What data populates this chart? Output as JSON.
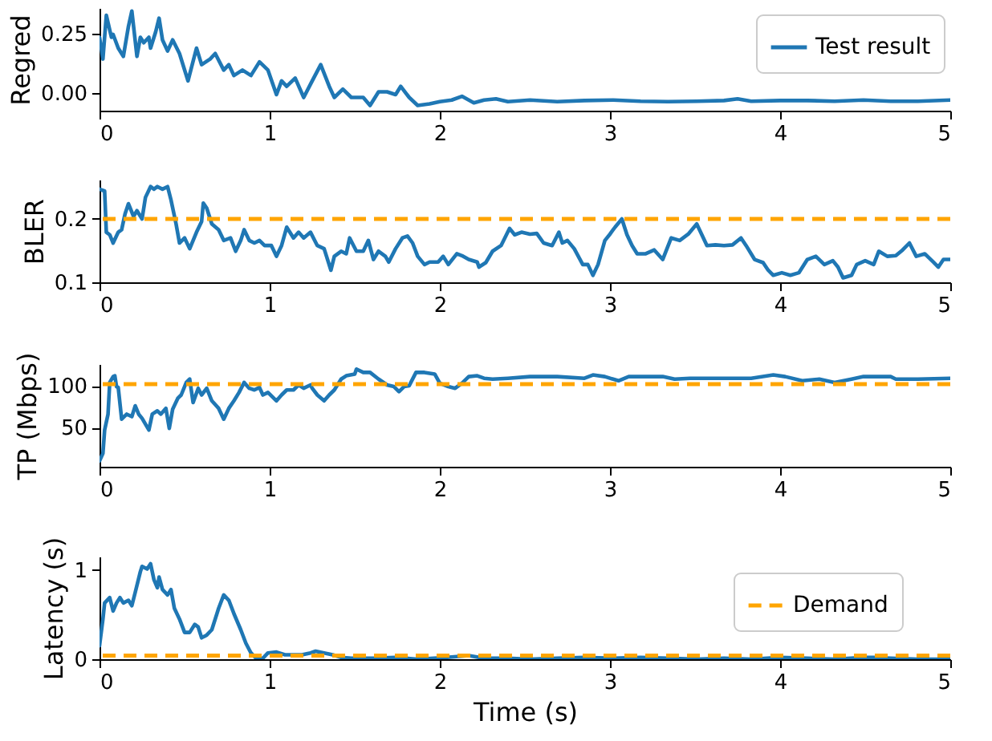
{
  "chart_data": [
    {
      "type": "line",
      "ylabel": "Regred",
      "xlim": [
        0,
        5
      ],
      "xticks": [
        0,
        1,
        2,
        3,
        4,
        5
      ],
      "ylim": [
        -0.075,
        0.36
      ],
      "yticks": [
        {
          "value": 0,
          "label": "0.00"
        },
        {
          "value": 0.25,
          "label": "0.25"
        }
      ],
      "legend": "top right",
      "line_style": "solid",
      "series": [
        {
          "name": "Test result",
          "color": "#1f77b4",
          "x": [
            0,
            0.02,
            0.04,
            0.07,
            0.08,
            0.11,
            0.14,
            0.17,
            0.19,
            0.22,
            0.24,
            0.26,
            0.29,
            0.3,
            0.33,
            0.35,
            0.37,
            0.4,
            0.43,
            0.47,
            0.52,
            0.57,
            0.6,
            0.65,
            0.68,
            0.73,
            0.76,
            0.79,
            0.84,
            0.89,
            0.94,
            0.99,
            1.04,
            1.07,
            1.1,
            1.15,
            1.2,
            1.25,
            1.3,
            1.35,
            1.38,
            1.43,
            1.48,
            1.55,
            1.59,
            1.64,
            1.69,
            1.74,
            1.77,
            1.82,
            1.87,
            1.94,
            2.0,
            2.07,
            2.13,
            2.2,
            2.26,
            2.33,
            2.4,
            2.53,
            2.69,
            2.85,
            3.02,
            3.18,
            3.34,
            3.51,
            3.67,
            3.75,
            3.83,
            4.0,
            4.16,
            4.32,
            4.49,
            4.65,
            4.81,
            5.0
          ],
          "values": [
            0.236,
            0.144,
            0.329,
            0.236,
            0.248,
            0.19,
            0.155,
            0.282,
            0.347,
            0.155,
            0.236,
            0.213,
            0.236,
            0.19,
            0.259,
            0.317,
            0.225,
            0.178,
            0.225,
            0.167,
            0.051,
            0.19,
            0.12,
            0.144,
            0.167,
            0.097,
            0.12,
            0.074,
            0.097,
            0.074,
            0.132,
            0.097,
            -0.007,
            0.051,
            0.028,
            0.063,
            -0.019,
            0.051,
            0.12,
            0.028,
            -0.019,
            0.016,
            -0.019,
            -0.019,
            -0.053,
            0.005,
            0.005,
            -0.007,
            0.028,
            -0.019,
            -0.053,
            -0.046,
            -0.037,
            -0.03,
            -0.014,
            -0.042,
            -0.03,
            -0.025,
            -0.037,
            -0.03,
            -0.037,
            -0.032,
            -0.03,
            -0.035,
            -0.037,
            -0.035,
            -0.032,
            -0.025,
            -0.035,
            -0.032,
            -0.032,
            -0.035,
            -0.03,
            -0.035,
            -0.035,
            -0.03
          ]
        }
      ]
    },
    {
      "type": "line",
      "ylabel": "BLER",
      "xlim": [
        0,
        5
      ],
      "xticks": [
        0,
        1,
        2,
        3,
        4,
        5
      ],
      "ylim": [
        0.1,
        0.262
      ],
      "yticks": [
        0.1,
        0.2
      ],
      "line_style": "solid",
      "series": [
        {
          "color": "#1f77b4",
          "x": [
            0,
            0.03,
            0.04,
            0.06,
            0.08,
            0.11,
            0.13,
            0.15,
            0.17,
            0.2,
            0.22,
            0.25,
            0.27,
            0.3,
            0.32,
            0.34,
            0.37,
            0.4,
            0.42,
            0.45,
            0.47,
            0.5,
            0.53,
            0.57,
            0.6,
            0.61,
            0.63,
            0.66,
            0.7,
            0.73,
            0.77,
            0.8,
            0.83,
            0.85,
            0.88,
            0.91,
            0.94,
            0.97,
            1.01,
            1.04,
            1.07,
            1.1,
            1.14,
            1.17,
            1.2,
            1.24,
            1.28,
            1.32,
            1.36,
            1.38,
            1.42,
            1.45,
            1.47,
            1.51,
            1.55,
            1.58,
            1.61,
            1.64,
            1.68,
            1.7,
            1.74,
            1.78,
            1.81,
            1.84,
            1.87,
            1.91,
            1.94,
            1.99,
            2.02,
            2.05,
            2.1,
            2.13,
            2.17,
            2.22,
            2.23,
            2.27,
            2.31,
            2.36,
            2.41,
            2.44,
            2.48,
            2.53,
            2.57,
            2.61,
            2.66,
            2.7,
            2.72,
            2.75,
            2.79,
            2.84,
            2.87,
            2.9,
            2.93,
            2.97,
            3.0,
            3.03,
            3.07,
            3.1,
            3.13,
            3.16,
            3.21,
            3.26,
            3.31,
            3.36,
            3.41,
            3.46,
            3.51,
            3.54,
            3.57,
            3.62,
            3.67,
            3.72,
            3.77,
            3.8,
            3.85,
            3.9,
            3.93,
            3.96,
            4.01,
            4.06,
            4.11,
            4.16,
            4.21,
            4.26,
            4.31,
            4.34,
            4.37,
            4.42,
            4.45,
            4.5,
            4.55,
            4.58,
            4.63,
            4.68,
            4.72,
            4.76,
            4.8,
            4.85,
            4.9,
            4.93,
            4.96,
            5.0
          ],
          "values": [
            0.247,
            0.244,
            0.179,
            0.175,
            0.162,
            0.179,
            0.183,
            0.208,
            0.224,
            0.204,
            0.213,
            0.2,
            0.234,
            0.251,
            0.247,
            0.251,
            0.247,
            0.251,
            0.23,
            0.192,
            0.162,
            0.17,
            0.153,
            0.179,
            0.196,
            0.225,
            0.217,
            0.192,
            0.183,
            0.166,
            0.17,
            0.149,
            0.166,
            0.183,
            0.166,
            0.162,
            0.166,
            0.158,
            0.158,
            0.141,
            0.158,
            0.187,
            0.17,
            0.179,
            0.17,
            0.179,
            0.158,
            0.153,
            0.119,
            0.141,
            0.149,
            0.145,
            0.17,
            0.149,
            0.149,
            0.166,
            0.136,
            0.149,
            0.141,
            0.132,
            0.153,
            0.17,
            0.173,
            0.162,
            0.141,
            0.128,
            0.132,
            0.132,
            0.141,
            0.128,
            0.145,
            0.142,
            0.136,
            0.132,
            0.124,
            0.131,
            0.149,
            0.158,
            0.185,
            0.175,
            0.179,
            0.176,
            0.177,
            0.162,
            0.158,
            0.179,
            0.162,
            0.166,
            0.153,
            0.128,
            0.128,
            0.111,
            0.128,
            0.166,
            0.176,
            0.187,
            0.2,
            0.175,
            0.158,
            0.145,
            0.145,
            0.151,
            0.136,
            0.17,
            0.166,
            0.176,
            0.192,
            0.175,
            0.158,
            0.159,
            0.158,
            0.159,
            0.17,
            0.158,
            0.136,
            0.131,
            0.119,
            0.111,
            0.115,
            0.111,
            0.115,
            0.136,
            0.141,
            0.128,
            0.134,
            0.124,
            0.107,
            0.111,
            0.128,
            0.134,
            0.128,
            0.149,
            0.141,
            0.142,
            0.151,
            0.162,
            0.141,
            0.145,
            0.132,
            0.124,
            0.136,
            0.136
          ]
        }
      ],
      "ref_lines": [
        {
          "axis": "y",
          "value": 0.2,
          "color": "#ffa500",
          "line_style": "dashed"
        }
      ]
    },
    {
      "type": "line",
      "ylabel": "TP (Mbps)",
      "xlim": [
        0,
        5
      ],
      "xticks": [
        0,
        1,
        2,
        3,
        4,
        5
      ],
      "ylim": [
        3,
        126
      ],
      "yticks": [
        50,
        100
      ],
      "line_style": "solid",
      "series": [
        {
          "color": "#1f77b4",
          "x": [
            0,
            0.02,
            0.03,
            0.05,
            0.06,
            0.08,
            0.09,
            0.1,
            0.11,
            0.13,
            0.16,
            0.19,
            0.21,
            0.23,
            0.25,
            0.29,
            0.31,
            0.34,
            0.36,
            0.39,
            0.41,
            0.43,
            0.46,
            0.48,
            0.51,
            0.53,
            0.55,
            0.58,
            0.6,
            0.63,
            0.66,
            0.7,
            0.73,
            0.76,
            0.79,
            0.82,
            0.85,
            0.88,
            0.91,
            0.94,
            0.96,
            0.99,
            1.04,
            1.07,
            1.1,
            1.14,
            1.17,
            1.2,
            1.24,
            1.25,
            1.28,
            1.32,
            1.35,
            1.38,
            1.42,
            1.45,
            1.5,
            1.51,
            1.55,
            1.59,
            1.64,
            1.69,
            1.73,
            1.76,
            1.79,
            1.82,
            1.86,
            1.91,
            1.97,
            2.0,
            2.05,
            2.09,
            2.13,
            2.17,
            2.22,
            2.26,
            2.31,
            2.4,
            2.53,
            2.69,
            2.85,
            2.9,
            2.97,
            3.05,
            3.11,
            3.18,
            3.31,
            3.38,
            3.47,
            3.67,
            3.83,
            3.96,
            4.03,
            4.13,
            4.23,
            4.32,
            4.42,
            4.49,
            4.58,
            4.65,
            4.68,
            4.81,
            5.0
          ],
          "values": [
            10,
            19,
            47,
            66,
            104,
            111,
            112,
            99,
            98,
            60,
            66,
            63,
            76,
            66,
            61,
            47,
            66,
            70,
            66,
            73,
            49,
            72,
            85,
            89,
            104,
            108,
            80,
            97,
            89,
            97,
            82,
            73,
            60,
            73,
            82,
            92,
            104,
            97,
            95,
            98,
            89,
            92,
            82,
            89,
            95,
            95,
            101,
            97,
            101,
            97,
            89,
            82,
            89,
            95,
            108,
            112,
            114,
            120,
            116,
            116,
            108,
            101,
            99,
            93,
            99,
            100,
            116,
            116,
            114,
            103,
            99,
            97,
            103,
            111,
            112,
            109,
            108,
            109,
            111,
            111,
            109,
            113,
            111,
            106,
            111,
            111,
            111,
            108,
            109,
            109,
            109,
            113,
            111,
            106,
            108,
            104,
            108,
            111,
            111,
            111,
            108,
            108,
            109
          ]
        }
      ],
      "ref_lines": [
        {
          "axis": "y",
          "value": 102,
          "color": "#ffa500",
          "line_style": "dashed"
        }
      ]
    },
    {
      "type": "line",
      "ylabel": "Latency (s)",
      "xlabel": "Time (s)",
      "xlim": [
        0,
        5
      ],
      "xticks": [
        0,
        1,
        2,
        3,
        4,
        5
      ],
      "ylim": [
        0,
        1.15
      ],
      "yticks": [
        0,
        1
      ],
      "legend": "right",
      "line_style": "solid",
      "series": [
        {
          "color": "#1f77b4",
          "x": [
            0,
            0.02,
            0.03,
            0.06,
            0.08,
            0.1,
            0.12,
            0.14,
            0.17,
            0.19,
            0.21,
            0.24,
            0.25,
            0.28,
            0.3,
            0.32,
            0.34,
            0.35,
            0.37,
            0.4,
            0.42,
            0.44,
            0.47,
            0.5,
            0.53,
            0.56,
            0.58,
            0.6,
            0.63,
            0.66,
            0.7,
            0.73,
            0.76,
            0.79,
            0.83,
            0.86,
            0.89,
            0.92,
            0.96,
            0.99,
            1.04,
            1.09,
            1.14,
            1.19,
            1.24,
            1.27,
            1.32,
            1.37,
            1.42,
            1.48,
            1.61,
            1.74,
            1.87,
            2.04,
            2.17,
            2.26,
            2.4,
            2.53,
            2.69,
            2.85,
            3.02,
            3.18,
            3.34,
            3.51,
            3.67,
            3.83,
            4.0,
            4.16,
            4.32,
            4.49,
            4.55,
            4.65,
            4.81,
            5.0
          ],
          "values": [
            0.15,
            0.45,
            0.63,
            0.69,
            0.54,
            0.63,
            0.69,
            0.63,
            0.66,
            0.6,
            0.75,
            0.98,
            1.04,
            1.01,
            1.07,
            0.89,
            0.8,
            0.92,
            0.78,
            0.72,
            0.78,
            0.57,
            0.45,
            0.3,
            0.3,
            0.39,
            0.36,
            0.24,
            0.27,
            0.33,
            0.57,
            0.72,
            0.66,
            0.51,
            0.33,
            0.18,
            0.07,
            0.01,
            0.01,
            0.07,
            0.08,
            0.05,
            0.05,
            0.05,
            0.07,
            0.09,
            0.07,
            0.05,
            0.02,
            0.01,
            0.01,
            0.02,
            0,
            0.02,
            0.04,
            0.01,
            0.01,
            0,
            0.01,
            0.02,
            0.01,
            0.02,
            0.01,
            0,
            0.01,
            0,
            0.02,
            0.01,
            0,
            0.02,
            0.02,
            0.01,
            0,
            0
          ]
        }
      ],
      "ref_lines": [
        {
          "axis": "y",
          "value": 0.04,
          "label": "Demand",
          "color": "#ffa500",
          "line_style": "dashed"
        }
      ]
    }
  ]
}
